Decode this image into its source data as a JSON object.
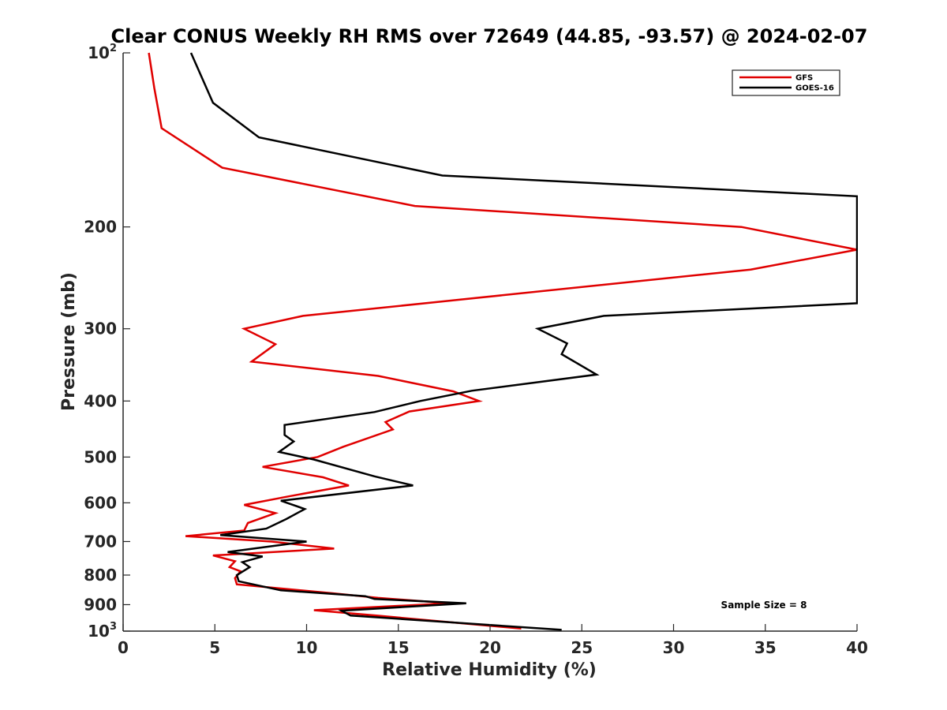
{
  "chart_data": {
    "type": "line",
    "title": "Clear CONUS Weekly RH RMS over 72649 (44.85, -93.57) @ 2024-02-07",
    "xlabel": "Relative Humidity (%)",
    "ylabel": "Pressure (mb)",
    "xlim": [
      0,
      40
    ],
    "ylim": [
      100,
      1000
    ],
    "yscale": "log",
    "y_reversed": true,
    "x_ticks": [
      0,
      5,
      10,
      15,
      20,
      25,
      30,
      35,
      40
    ],
    "x_tick_labels": [
      "0",
      "5",
      "10",
      "15",
      "20",
      "25",
      "30",
      "35",
      "40"
    ],
    "y_ticks": [
      100,
      200,
      300,
      400,
      500,
      600,
      700,
      800,
      900,
      1000
    ],
    "y_tick_labels": [
      {
        "base": "10",
        "exp": "2"
      },
      {
        "base": "200",
        "exp": ""
      },
      {
        "base": "300",
        "exp": ""
      },
      {
        "base": "400",
        "exp": ""
      },
      {
        "base": "500",
        "exp": ""
      },
      {
        "base": "600",
        "exp": ""
      },
      {
        "base": "700",
        "exp": ""
      },
      {
        "base": "800",
        "exp": ""
      },
      {
        "base": "900",
        "exp": ""
      },
      {
        "base": "10",
        "exp": "3"
      }
    ],
    "grid": false,
    "legend_position": "top-right",
    "annotation": "Sample Size = 8",
    "series": [
      {
        "name": "GFS",
        "color": "#e00000",
        "points": [
          [
            1.4,
            100
          ],
          [
            1.7,
            115
          ],
          [
            2.1,
            135
          ],
          [
            5.4,
            158
          ],
          [
            15.9,
            184
          ],
          [
            33.7,
            200
          ],
          [
            40,
            219
          ],
          [
            34.2,
            237
          ],
          [
            9.8,
            285
          ],
          [
            6.6,
            300
          ],
          [
            8.3,
            319
          ],
          [
            7.0,
            342
          ],
          [
            13.9,
            362
          ],
          [
            18.0,
            385
          ],
          [
            19.4,
            400
          ],
          [
            15.6,
            417
          ],
          [
            14.3,
            435
          ],
          [
            14.7,
            448
          ],
          [
            12.0,
            480
          ],
          [
            10.6,
            500
          ],
          [
            7.6,
            520
          ],
          [
            10.9,
            542
          ],
          [
            12.3,
            560
          ],
          [
            9.0,
            585
          ],
          [
            6.6,
            605
          ],
          [
            8.3,
            625
          ],
          [
            6.8,
            650
          ],
          [
            6.6,
            670
          ],
          [
            3.4,
            685
          ],
          [
            8.1,
            700
          ],
          [
            11.5,
            720
          ],
          [
            4.9,
            740
          ],
          [
            6.1,
            757
          ],
          [
            5.8,
            775
          ],
          [
            6.4,
            788
          ],
          [
            6.1,
            810
          ],
          [
            6.2,
            830
          ],
          [
            11.4,
            860
          ],
          [
            13.9,
            876
          ],
          [
            17.8,
            895
          ],
          [
            10.4,
            920
          ],
          [
            13.8,
            940
          ],
          [
            21.7,
            990
          ]
        ]
      },
      {
        "name": "GOES-16",
        "color": "#000000",
        "points": [
          [
            3.7,
            100
          ],
          [
            4.9,
            122
          ],
          [
            7.4,
            140
          ],
          [
            17.4,
            163
          ],
          [
            40,
            177
          ],
          [
            40,
            271
          ],
          [
            26.2,
            285
          ],
          [
            22.6,
            300
          ],
          [
            24.2,
            318
          ],
          [
            23.9,
            332
          ],
          [
            25.8,
            360
          ],
          [
            19.0,
            384
          ],
          [
            16.2,
            400
          ],
          [
            13.7,
            418
          ],
          [
            8.8,
            440
          ],
          [
            8.8,
            458
          ],
          [
            9.3,
            470
          ],
          [
            8.5,
            490
          ],
          [
            10.4,
            505
          ],
          [
            13.7,
            540
          ],
          [
            15.8,
            560
          ],
          [
            8.6,
            595
          ],
          [
            9.9,
            615
          ],
          [
            8.9,
            640
          ],
          [
            7.8,
            665
          ],
          [
            5.3,
            682
          ],
          [
            10.0,
            700
          ],
          [
            7.8,
            715
          ],
          [
            5.7,
            730
          ],
          [
            7.6,
            743
          ],
          [
            6.5,
            760
          ],
          [
            6.9,
            775
          ],
          [
            6.2,
            800
          ],
          [
            6.3,
            820
          ],
          [
            8.6,
            850
          ],
          [
            13.2,
            870
          ],
          [
            13.7,
            880
          ],
          [
            18.7,
            895
          ],
          [
            11.9,
            922
          ],
          [
            12.4,
            940
          ],
          [
            23.9,
            995
          ]
        ]
      }
    ]
  }
}
